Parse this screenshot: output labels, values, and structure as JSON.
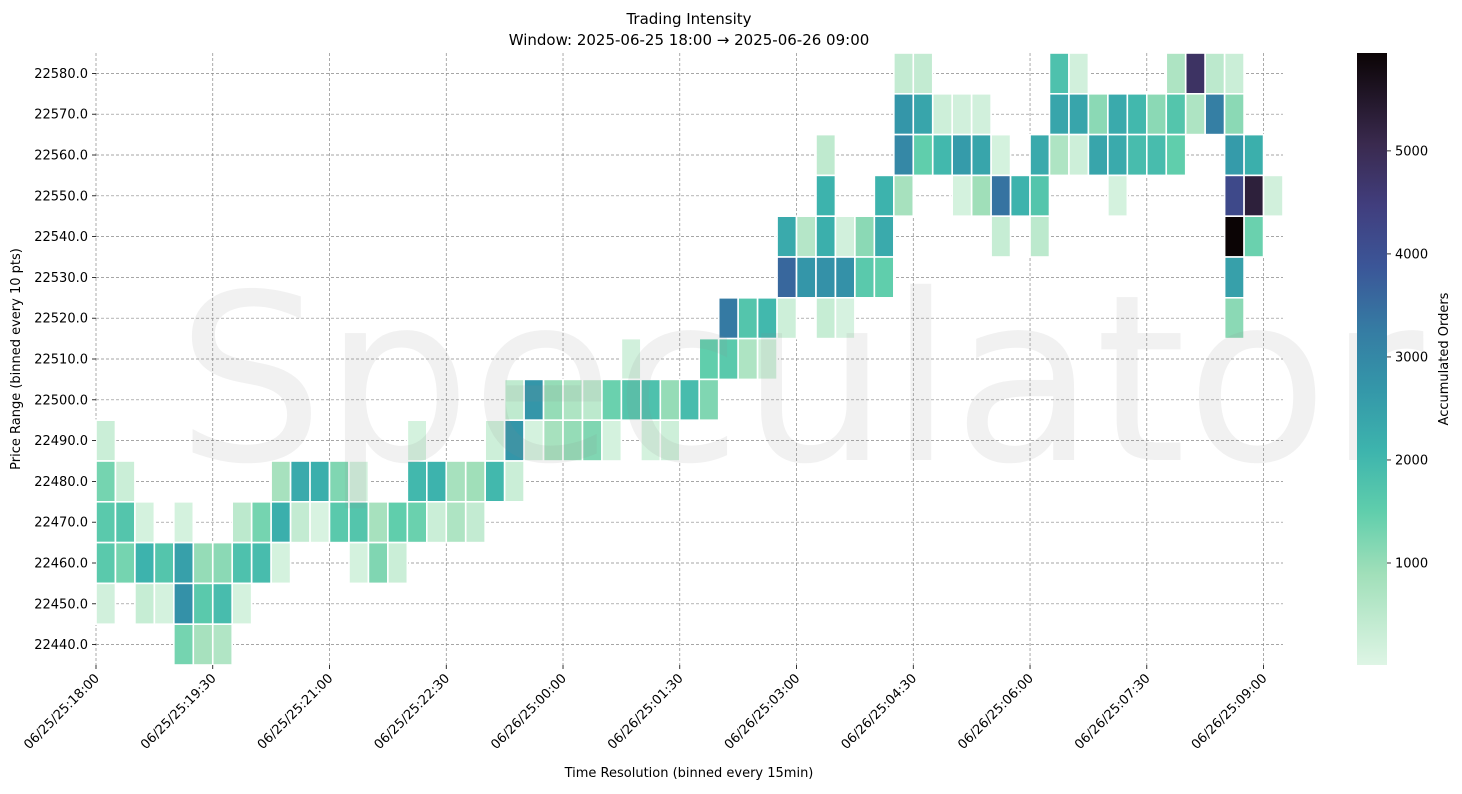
{
  "chart_data": {
    "type": "heatmap",
    "title": "Trading Intensity",
    "subtitle": "Window: 2025-06-25 18:00 → 2025-06-26 09:00",
    "xlabel": "Time Resolution (binned every 15min)",
    "ylabel": "Price Range (binned every 10 pts)",
    "colorbar_label": "Accumulated Orders",
    "colormap": "mako_r",
    "color_range": [
      10,
      5950
    ],
    "colorbar_ticks": [
      1000,
      2000,
      3000,
      4000,
      5000
    ],
    "x_range": [
      "06/25 18:00",
      "06/26 09:00"
    ],
    "x_ticks": [
      "06/25/25:18:00",
      "06/25/25:19:30",
      "06/25/25:21:00",
      "06/25/25:22:30",
      "06/26/25:00:00",
      "06/26/25:01:30",
      "06/26/25:03:00",
      "06/26/25:04:30",
      "06/26/25:06:00",
      "06/26/25:07:30",
      "06/26/25:09:00"
    ],
    "y_ticks": [
      "22580.0",
      "22570.0",
      "22560.0",
      "22550.0",
      "22540.0",
      "22530.0",
      "22520.0",
      "22510.0",
      "22500.0",
      "22490.0",
      "22480.0",
      "22470.0",
      "22460.0",
      "22450.0",
      "22440.0"
    ],
    "grid": true,
    "watermark": "Speculator",
    "rows": {
      "22580": [
        [
          "06/26 04:15",
          400
        ],
        [
          "06/26 04:30",
          400
        ],
        [
          "06/26 06:15",
          1800
        ],
        [
          "06/26 06:30",
          200
        ],
        [
          "06/26 07:45",
          700
        ],
        [
          "06/26 08:00",
          4800
        ],
        [
          "06/26 08:15",
          500
        ],
        [
          "06/26 08:30",
          300
        ]
      ],
      "22570": [
        [
          "06/26 04:15",
          2700
        ],
        [
          "06/26 04:30",
          2400
        ],
        [
          "06/26 04:45",
          250
        ],
        [
          "06/26 05:00",
          200
        ],
        [
          "06/26 05:15",
          200
        ],
        [
          "06/26 06:15",
          2400
        ],
        [
          "06/26 06:30",
          2400
        ],
        [
          "06/26 06:45",
          1100
        ],
        [
          "06/26 07:00",
          2300
        ],
        [
          "06/26 07:15",
          2000
        ],
        [
          "06/26 07:30",
          1100
        ],
        [
          "06/26 07:45",
          1700
        ],
        [
          "06/26 08:00",
          700
        ],
        [
          "06/26 08:15",
          3200
        ],
        [
          "06/26 08:30",
          1100
        ]
      ],
      "22560": [
        [
          "06/26 03:15",
          450
        ],
        [
          "06/26 04:15",
          3000
        ],
        [
          "06/26 04:30",
          1500
        ],
        [
          "06/26 04:45",
          2000
        ],
        [
          "06/26 05:00",
          2600
        ],
        [
          "06/26 05:15",
          2400
        ],
        [
          "06/26 05:30",
          150
        ],
        [
          "06/26 06:00",
          2300
        ],
        [
          "06/26 06:15",
          700
        ],
        [
          "06/26 06:30",
          250
        ],
        [
          "06/26 06:45",
          2400
        ],
        [
          "06/26 07:00",
          2300
        ],
        [
          "06/26 07:15",
          1900
        ],
        [
          "06/26 07:30",
          1900
        ],
        [
          "06/26 07:45",
          1500
        ],
        [
          "06/26 08:30",
          2600
        ],
        [
          "06/26 08:45",
          2200
        ]
      ],
      "22550": [
        [
          "06/26 03:15",
          2100
        ],
        [
          "06/26 04:00",
          2100
        ],
        [
          "06/26 04:15",
          800
        ],
        [
          "06/26 05:00",
          150
        ],
        [
          "06/26 05:15",
          900
        ],
        [
          "06/26 05:30",
          3400
        ],
        [
          "06/26 05:45",
          2100
        ],
        [
          "06/26 06:00",
          1700
        ],
        [
          "06/26 07:00",
          150
        ],
        [
          "06/26 08:30",
          4200
        ],
        [
          "06/26 08:45",
          5300
        ],
        [
          "06/26 09:00",
          200
        ]
      ],
      "22540": [
        [
          "06/26 02:45",
          2300
        ],
        [
          "06/26 03:00",
          600
        ],
        [
          "06/26 03:15",
          2200
        ],
        [
          "06/26 03:30",
          200
        ],
        [
          "06/26 03:45",
          1100
        ],
        [
          "06/26 04:00",
          2300
        ],
        [
          "06/26 05:30",
          350
        ],
        [
          "06/26 06:00",
          500
        ],
        [
          "06/26 08:30",
          5950
        ],
        [
          "06/26 08:45",
          1400
        ]
      ],
      "22530": [
        [
          "06/26 02:45",
          3600
        ],
        [
          "06/26 03:00",
          2700
        ],
        [
          "06/26 03:15",
          2800
        ],
        [
          "06/26 03:30",
          2800
        ],
        [
          "06/26 03:45",
          1600
        ],
        [
          "06/26 04:00",
          1500
        ],
        [
          "06/26 08:30",
          2500
        ]
      ],
      "22520": [
        [
          "06/26 02:00",
          3300
        ],
        [
          "06/26 02:15",
          1700
        ],
        [
          "06/26 02:30",
          2000
        ],
        [
          "06/26 02:45",
          250
        ],
        [
          "06/26 03:15",
          350
        ],
        [
          "06/26 03:30",
          120
        ],
        [
          "06/26 08:30",
          1100
        ]
      ],
      "22510": [
        [
          "06/26 00:45",
          200
        ],
        [
          "06/26 01:45",
          1500
        ],
        [
          "06/26 02:00",
          1600
        ],
        [
          "06/26 02:15",
          700
        ],
        [
          "06/26 02:30",
          250
        ]
      ],
      "22500": [
        [
          "06/25 23:15",
          450
        ],
        [
          "06/25 23:30",
          2700
        ],
        [
          "06/25 23:45",
          1000
        ],
        [
          "06/26 00:00",
          700
        ],
        [
          "06/26 00:15",
          500
        ],
        [
          "06/26 00:30",
          1400
        ],
        [
          "06/26 00:45",
          1700
        ],
        [
          "06/26 01:00",
          1800
        ],
        [
          "06/26 01:15",
          1000
        ],
        [
          "06/26 01:30",
          1900
        ],
        [
          "06/26 01:45",
          1200
        ]
      ],
      "22490": [
        [
          "06/25 18:00",
          300
        ],
        [
          "06/25 22:00",
          150
        ],
        [
          "06/25 23:00",
          250
        ],
        [
          "06/25 23:15",
          2700
        ],
        [
          "06/25 23:30",
          150
        ],
        [
          "06/25 23:45",
          800
        ],
        [
          "06/26 00:00",
          1000
        ],
        [
          "06/26 00:15",
          1200
        ],
        [
          "06/26 00:30",
          150
        ],
        [
          "06/26 01:00",
          150
        ],
        [
          "06/26 01:15",
          250
        ]
      ],
      "22480": [
        [
          "06/25 18:00",
          1300
        ],
        [
          "06/25 18:15",
          300
        ],
        [
          "06/25 20:15",
          800
        ],
        [
          "06/25 20:30",
          2300
        ],
        [
          "06/25 20:45",
          2200
        ],
        [
          "06/25 21:00",
          1200
        ],
        [
          "06/25 21:15",
          200
        ],
        [
          "06/25 22:00",
          2000
        ],
        [
          "06/25 22:15",
          2100
        ],
        [
          "06/25 22:30",
          800
        ],
        [
          "06/25 22:45",
          900
        ],
        [
          "06/25 23:00",
          2000
        ],
        [
          "06/25 23:15",
          300
        ]
      ],
      "22470": [
        [
          "06/25 18:00",
          1600
        ],
        [
          "06/25 18:15",
          1700
        ],
        [
          "06/25 18:30",
          150
        ],
        [
          "06/25 19:00",
          150
        ],
        [
          "06/25 19:45",
          500
        ],
        [
          "06/25 20:00",
          1300
        ],
        [
          "06/25 20:15",
          2200
        ],
        [
          "06/25 20:30",
          400
        ],
        [
          "06/25 20:45",
          100
        ],
        [
          "06/25 21:00",
          1600
        ],
        [
          "06/25 21:15",
          1700
        ],
        [
          "06/25 21:30",
          800
        ],
        [
          "06/25 21:45",
          1500
        ],
        [
          "06/25 22:00",
          1400
        ],
        [
          "06/25 22:15",
          300
        ],
        [
          "06/25 22:30",
          700
        ],
        [
          "06/25 22:45",
          400
        ]
      ],
      "22460": [
        [
          "06/25 18:00",
          1600
        ],
        [
          "06/25 18:15",
          1300
        ],
        [
          "06/25 18:30",
          2100
        ],
        [
          "06/25 18:45",
          1700
        ],
        [
          "06/25 19:00",
          2500
        ],
        [
          "06/25 19:15",
          1000
        ],
        [
          "06/25 19:30",
          1100
        ],
        [
          "06/25 19:45",
          1800
        ],
        [
          "06/25 20:00",
          1900
        ],
        [
          "06/25 20:15",
          150
        ],
        [
          "06/25 21:15",
          150
        ],
        [
          "06/25 21:30",
          1200
        ],
        [
          "06/25 21:45",
          300
        ]
      ],
      "22450": [
        [
          "06/25 18:00",
          200
        ],
        [
          "06/25 18:30",
          350
        ],
        [
          "06/25 18:45",
          150
        ],
        [
          "06/25 19:00",
          2800
        ],
        [
          "06/25 19:15",
          1600
        ],
        [
          "06/25 19:30",
          1900
        ],
        [
          "06/25 19:45",
          150
        ]
      ],
      "22440": [
        [
          "06/25 19:00",
          1300
        ],
        [
          "06/25 19:15",
          800
        ],
        [
          "06/25 19:30",
          650
        ]
      ]
    }
  }
}
